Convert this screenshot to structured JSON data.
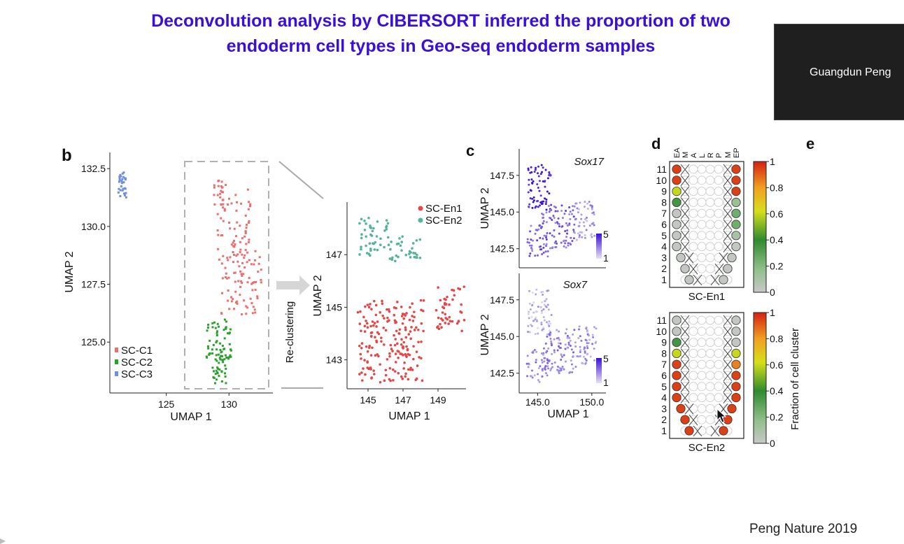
{
  "slide": {
    "title_line1": "Deconvolution analysis by CIBERSORT inferred the proportion of two",
    "title_line2": "endoderm cell types in Geo-seq endoderm samples",
    "citation": "Peng Nature 2019"
  },
  "video_tile": {
    "name": "Guangdun Peng"
  },
  "colors": {
    "title": "#3b0fd6",
    "sc_c1": "#e8706e",
    "sc_c2": "#2ca02c",
    "sc_c3": "#6c8ee6",
    "sc_en1": "#e34848",
    "sc_en2": "#55b39a",
    "expr_high": "#3a10d8",
    "expr_low": "#e6e2f2"
  },
  "chart_data": [
    {
      "panel": "b",
      "type": "scatter",
      "xlabel": "UMAP 1",
      "ylabel": "UMAP 2",
      "xticks": [
        "125",
        "130"
      ],
      "yticks": [
        "125.0",
        "127.5",
        "130.0",
        "132.5"
      ],
      "xlim": [
        120.5,
        133.5
      ],
      "ylim": [
        122.8,
        133.2
      ],
      "legend": [
        "SC-C1",
        "SC-C2",
        "SC-C3"
      ],
      "legend_position": "bottom-left",
      "arrow_label": "Re-clustering",
      "clusters": [
        {
          "name": "SC-C1",
          "regions": [
            [
              130.4,
              130.0,
              1.3,
              1.6,
              60
            ],
            [
              131.0,
              127.6,
              1.6,
              1.4,
              80
            ],
            [
              129.3,
              131.4,
              0.6,
              0.6,
              20
            ]
          ]
        },
        {
          "name": "SC-C2",
          "regions": [
            [
              129.2,
              125.1,
              1.0,
              0.9,
              55
            ],
            [
              129.2,
              123.9,
              0.6,
              0.7,
              35
            ]
          ]
        },
        {
          "name": "SC-C3",
          "regions": [
            [
              121.5,
              131.8,
              0.35,
              0.55,
              30
            ]
          ]
        }
      ]
    },
    {
      "panel": "b-recluster",
      "type": "scatter",
      "xlabel": "UMAP 1",
      "ylabel": "UMAP 2",
      "xticks": [
        "145",
        "147",
        "149"
      ],
      "yticks": [
        "143",
        "145",
        "147"
      ],
      "xlim": [
        143.8,
        150.6
      ],
      "ylim": [
        141.9,
        149.0
      ],
      "legend": [
        "SC-En1",
        "SC-En2"
      ],
      "legend_position": "top-right",
      "clusters": [
        {
          "name": "SC-En1",
          "regions": [
            [
              146.3,
              143.7,
              1.9,
              1.6,
              190
            ],
            [
              149.7,
              145.0,
              0.8,
              0.9,
              45
            ]
          ]
        },
        {
          "name": "SC-En2",
          "regions": [
            [
              145.4,
              147.6,
              0.9,
              0.8,
              45
            ],
            [
              147.1,
              147.2,
              0.9,
              0.5,
              30
            ]
          ]
        }
      ]
    },
    {
      "panel": "c",
      "type": "scatter",
      "title": "Sox17",
      "ylabel": "UMAP 2",
      "xticks": [],
      "yticks": [
        "142.5",
        "145.0",
        "147.5"
      ],
      "xlim": [
        143.3,
        151.3
      ],
      "ylim": [
        141.2,
        149.3
      ],
      "colorbar": [
        "5",
        "1"
      ]
    },
    {
      "panel": "c",
      "type": "scatter",
      "title": "Sox7",
      "xlabel": "UMAP 1",
      "ylabel": "UMAP 2",
      "xticks": [
        "145.0",
        "150.0"
      ],
      "yticks": [
        "142.5",
        "145.0",
        "147.5"
      ],
      "xlim": [
        143.3,
        151.3
      ],
      "ylim": [
        141.2,
        149.3
      ],
      "colorbar": [
        "5",
        "1"
      ]
    },
    {
      "panel": "d",
      "type": "heatmap",
      "columns": [
        "EA",
        "M",
        "A",
        "L",
        "R",
        "P",
        "M",
        "EP"
      ],
      "rows": [
        "11",
        "10",
        "9",
        "8",
        "7",
        "6",
        "5",
        "4",
        "3",
        "2",
        "1"
      ],
      "colorbar_ticks": [
        "1",
        "0.8",
        "0.6",
        "0.4",
        "0.2",
        "0"
      ],
      "colorbar_label": "Fraction of cell cluster",
      "grids": [
        {
          "name": "SC-En1",
          "left_values": [
            0.95,
            0.95,
            0.6,
            0.35,
            0.02,
            0.02,
            0.02,
            0.02,
            0.02,
            0.02,
            0.02
          ],
          "right_values": [
            0.95,
            0.95,
            0.95,
            0.15,
            0.25,
            0.25,
            0.1,
            0.02,
            0.02,
            0.02,
            0.02
          ]
        },
        {
          "name": "SC-En2",
          "left_values": [
            0.02,
            0.02,
            0.35,
            0.6,
            0.95,
            0.95,
            0.95,
            0.95,
            0.95,
            0.95,
            0.95
          ],
          "right_values": [
            0.02,
            0.02,
            0.02,
            0.6,
            0.85,
            0.95,
            0.95,
            0.95,
            0.95,
            0.95,
            0.95
          ]
        }
      ]
    }
  ]
}
